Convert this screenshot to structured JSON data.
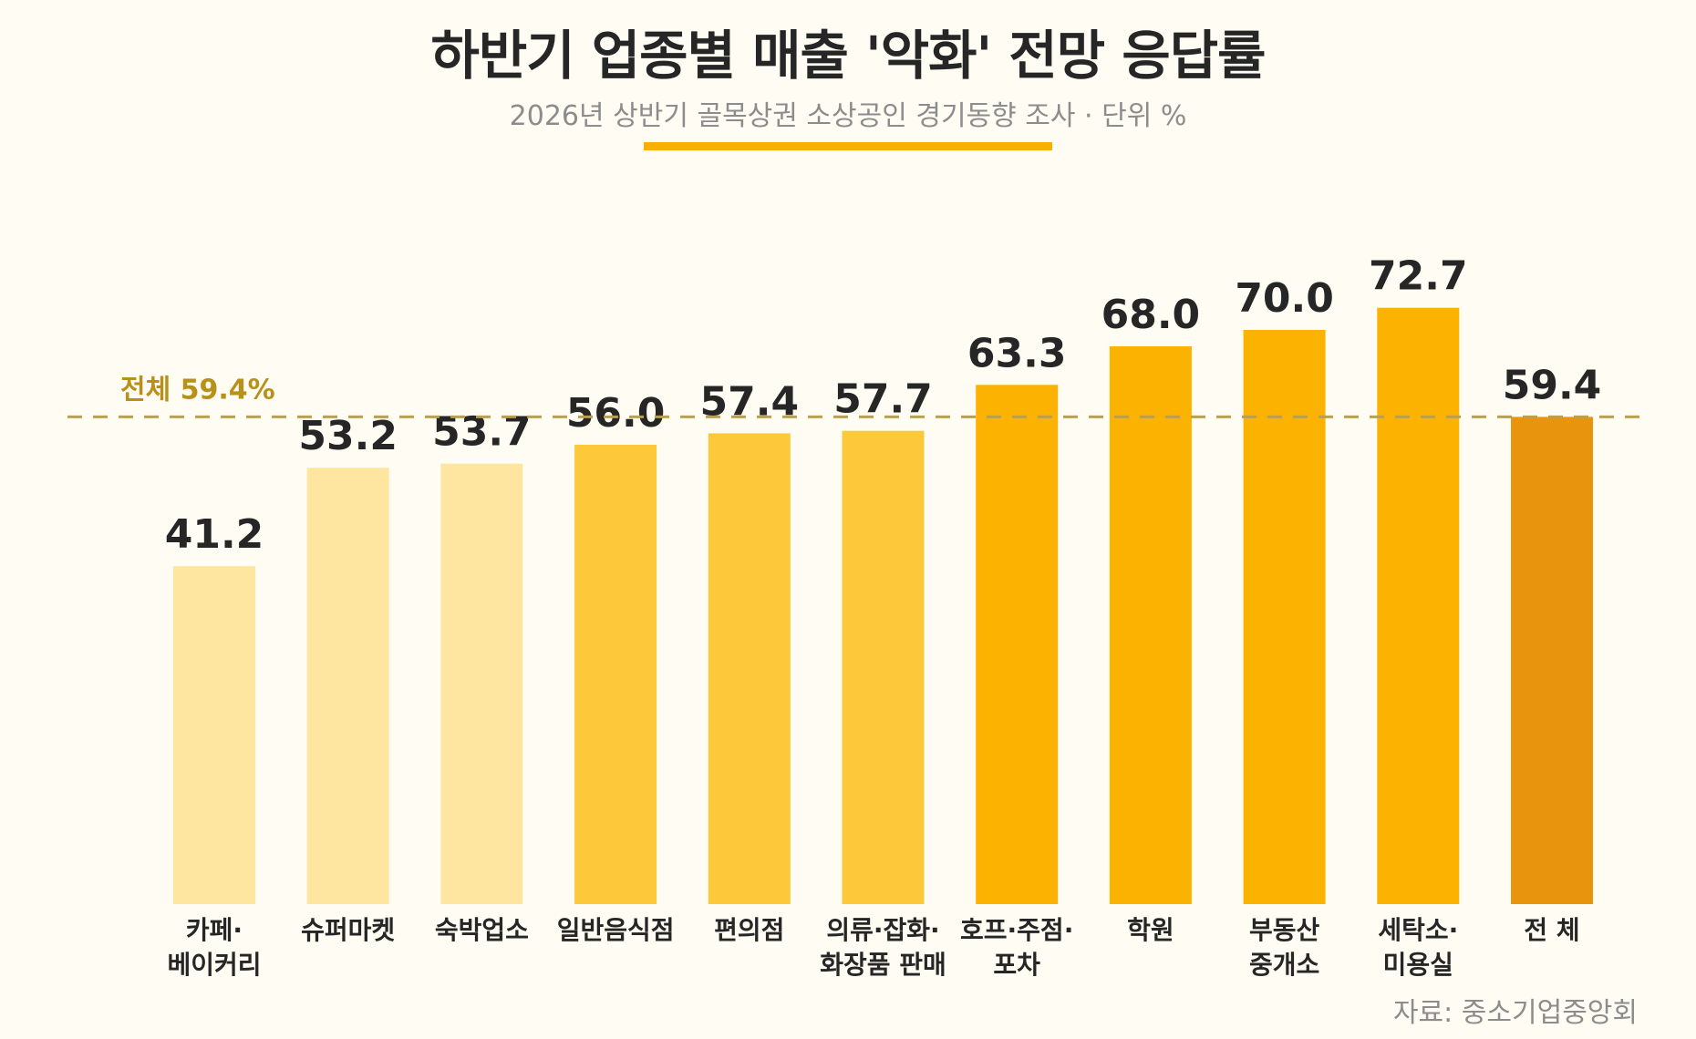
{
  "header": {
    "title": "하반기 업종별 매출 '악화' 전망 응답률",
    "subtitle": "2026년 상반기 골목상권 소상공인 경기동향 조사 · 단위 %"
  },
  "footer": {
    "source": "자료: 중소기업중앙회"
  },
  "chart_data": {
    "type": "bar",
    "title": "하반기 업종별 매출 '악화' 전망 응답률",
    "subtitle": "2026년 상반기 골목상권 소상공인 경기동향 조사 · 단위 %",
    "categories": [
      "카페·\n베이커리",
      "슈퍼마켓",
      "숙박업소",
      "일반음식점",
      "편의점",
      "의류·잡화·\n화장품 판매",
      "호프·주점·\n포차",
      "학원",
      "부동산\n중개소",
      "세탁소·\n미용실",
      "전 체"
    ],
    "values": [
      41.2,
      53.2,
      53.7,
      56.0,
      57.4,
      57.7,
      63.3,
      68.0,
      70.0,
      72.7,
      59.4
    ],
    "value_labels": [
      "41.2",
      "53.2",
      "53.7",
      "56.0",
      "57.4",
      "57.7",
      "63.3",
      "68.0",
      "70.0",
      "72.7",
      "59.4"
    ],
    "colors": [
      "#fee6a0",
      "#fee6a0",
      "#fee6a0",
      "#fdc93a",
      "#fdc93a",
      "#fdc93a",
      "#fcb200",
      "#fcb200",
      "#fcb200",
      "#fcb200",
      "#e8940c"
    ],
    "reference_line": {
      "value": 59.4,
      "label": "전체 59.4%",
      "color": "#b8a050"
    },
    "ylim": [
      0,
      100
    ],
    "grid": false,
    "legend": "none"
  }
}
